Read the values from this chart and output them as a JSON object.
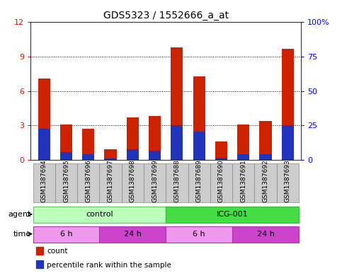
{
  "title": "GDS5323 / 1552666_a_at",
  "samples": [
    "GSM1387694",
    "GSM1387695",
    "GSM1387696",
    "GSM1387697",
    "GSM1387698",
    "GSM1387699",
    "GSM1387688",
    "GSM1387689",
    "GSM1387690",
    "GSM1387691",
    "GSM1387692",
    "GSM1387693"
  ],
  "count_values": [
    7.1,
    3.1,
    2.7,
    0.9,
    3.7,
    3.8,
    9.8,
    7.3,
    1.6,
    3.1,
    3.4,
    9.7
  ],
  "percentile_values": [
    22.5,
    5.8,
    4.2,
    1.25,
    7.5,
    6.7,
    25.0,
    20.8,
    1.7,
    4.2,
    4.2,
    25.0
  ],
  "ylim_left": [
    0,
    12
  ],
  "ylim_right": [
    0,
    100
  ],
  "yticks_left": [
    0,
    3,
    6,
    9,
    12
  ],
  "yticks_right": [
    0,
    25,
    50,
    75,
    100
  ],
  "ytick_labels_right": [
    "0",
    "25",
    "50",
    "75",
    "100%"
  ],
  "bar_color_red": "#cc2200",
  "bar_color_blue": "#2233bb",
  "bar_width": 0.55,
  "agent_groups": [
    {
      "label": "control",
      "start": 0,
      "end": 6,
      "color": "#bbffbb",
      "border_color": "#55cc55"
    },
    {
      "label": "ICG-001",
      "start": 6,
      "end": 12,
      "color": "#44dd44",
      "border_color": "#33bb33"
    }
  ],
  "time_groups": [
    {
      "label": "6 h",
      "start": 0,
      "end": 3,
      "color": "#ee99ee"
    },
    {
      "label": "24 h",
      "start": 3,
      "end": 6,
      "color": "#cc44cc"
    },
    {
      "label": "6 h",
      "start": 6,
      "end": 9,
      "color": "#ee99ee"
    },
    {
      "label": "24 h",
      "start": 9,
      "end": 12,
      "color": "#cc44cc"
    }
  ],
  "agent_label": "agent",
  "time_label": "time",
  "legend_items": [
    {
      "label": "count",
      "color": "#cc2200"
    },
    {
      "label": "percentile rank within the sample",
      "color": "#2233bb"
    }
  ],
  "sample_box_color": "#cccccc",
  "background_color": "#ffffff",
  "title_fontsize": 10,
  "tick_fontsize": 6.5,
  "label_fontsize": 8
}
